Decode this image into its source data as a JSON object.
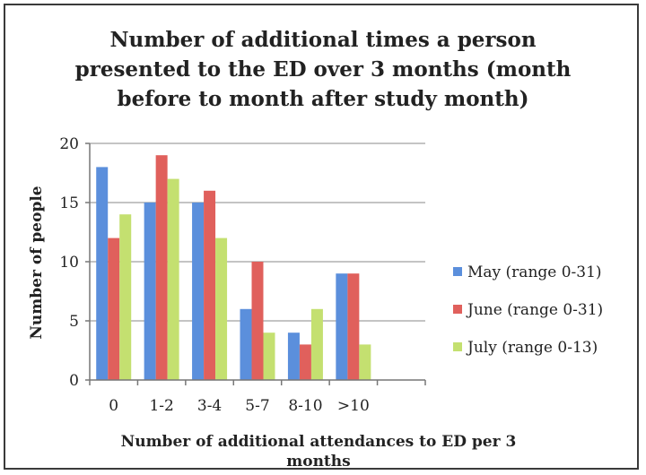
{
  "chart_data": {
    "type": "bar",
    "title_lines": [
      "Number of additional times a person",
      "presented to the ED over 3 months (month",
      "before to month after study month)"
    ],
    "xlabel_lines": [
      "Number of additional attendances to ED per 3",
      "months"
    ],
    "ylabel": "Number of people",
    "categories": [
      "0",
      "1-2",
      "3-4",
      "5-7",
      "8-10",
      ">10"
    ],
    "series": [
      {
        "name": "May (range 0-31)",
        "color": "#5b8fdc",
        "values": [
          18,
          15,
          15,
          6,
          4,
          9
        ]
      },
      {
        "name": "June (range 0-31)",
        "color": "#e0605c",
        "values": [
          12,
          19,
          16,
          10,
          3,
          9
        ]
      },
      {
        "name": "July (range 0-13)",
        "color": "#c4e070",
        "values": [
          14,
          17,
          12,
          4,
          6,
          3
        ]
      }
    ],
    "ylim": [
      0,
      20
    ],
    "yticks": [
      0,
      5,
      10,
      15,
      20
    ],
    "grid": true,
    "legend": "right"
  }
}
